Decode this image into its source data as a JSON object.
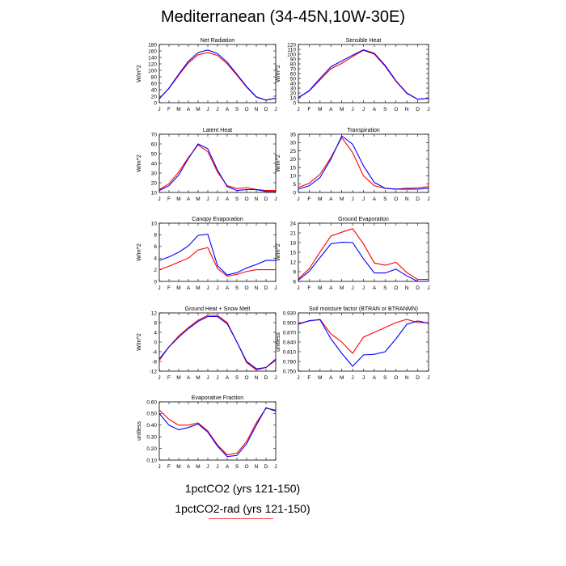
{
  "title": "Mediterranean (34-45N,10W-30E)",
  "legend": {
    "entries": [
      {
        "label": "1pctCO2 (yrs 121-150)",
        "color": "#0000ff"
      },
      {
        "label": "1pctCO2-rad (yrs 121-150)",
        "color": "#ff0000"
      }
    ]
  },
  "colors": {
    "series_1": "#0000ff",
    "series_2": "#ff0000"
  },
  "chart_data": [
    {
      "type": "line",
      "title": "Net Radiation",
      "ylabel": "W/m^2",
      "categories": [
        "J",
        "F",
        "M",
        "A",
        "M",
        "J",
        "J",
        "A",
        "S",
        "O",
        "N",
        "D",
        "J"
      ],
      "ylim": [
        0,
        180
      ],
      "yticks": [
        "0",
        "20",
        "40",
        "60",
        "80",
        "100",
        "120",
        "140",
        "160",
        "180"
      ],
      "series": [
        {
          "values": [
            12,
            45,
            88,
            128,
            155,
            163,
            152,
            125,
            88,
            50,
            18,
            8,
            14
          ]
        },
        {
          "values": [
            13,
            44,
            85,
            123,
            148,
            155,
            146,
            120,
            85,
            48,
            17,
            8,
            14
          ]
        }
      ]
    },
    {
      "type": "line",
      "title": "Sensible Heat",
      "ylabel": "W/m^2",
      "categories": [
        "J",
        "F",
        "M",
        "A",
        "M",
        "J",
        "J",
        "A",
        "S",
        "O",
        "N",
        "D",
        "J"
      ],
      "ylim": [
        0,
        120
      ],
      "yticks": [
        "0",
        "10",
        "20",
        "30",
        "40",
        "50",
        "60",
        "70",
        "80",
        "90",
        "100",
        "110",
        "120"
      ],
      "series": [
        {
          "values": [
            10,
            25,
            50,
            74,
            86,
            98,
            109,
            102,
            77,
            45,
            20,
            7,
            9
          ]
        },
        {
          "values": [
            11,
            24,
            47,
            70,
            81,
            95,
            108,
            100,
            75,
            44,
            19,
            7,
            9
          ]
        }
      ]
    },
    {
      "type": "line",
      "title": "Latent Heat",
      "ylabel": "W/m^2",
      "categories": [
        "J",
        "F",
        "M",
        "A",
        "M",
        "J",
        "J",
        "A",
        "S",
        "O",
        "N",
        "D",
        "J"
      ],
      "ylim": [
        10,
        70
      ],
      "yticks": [
        "10",
        "20",
        "30",
        "40",
        "50",
        "60",
        "70"
      ],
      "series": [
        {
          "values": [
            12,
            17,
            28,
            45,
            60,
            55,
            33,
            16,
            12,
            13,
            13,
            11,
            11
          ]
        },
        {
          "values": [
            13,
            19,
            31,
            46,
            59,
            52,
            31,
            17,
            14,
            15,
            13,
            12,
            12
          ]
        }
      ]
    },
    {
      "type": "line",
      "title": "Transpiration",
      "ylabel": "W/m^2",
      "categories": [
        "J",
        "F",
        "M",
        "A",
        "M",
        "J",
        "J",
        "A",
        "S",
        "O",
        "N",
        "D",
        "J"
      ],
      "ylim": [
        0,
        35
      ],
      "yticks": [
        "0",
        "5",
        "10",
        "15",
        "20",
        "25",
        "30",
        "35"
      ],
      "series": [
        {
          "values": [
            2,
            4,
            9,
            20,
            34,
            29,
            16,
            6,
            2.5,
            2,
            2,
            2,
            2.5
          ]
        },
        {
          "values": [
            3,
            5.5,
            11,
            21,
            33,
            24,
            10,
            4,
            2.5,
            2,
            2.5,
            2.8,
            3.5
          ]
        }
      ]
    },
    {
      "type": "line",
      "title": "Canopy Evaporation",
      "ylabel": "W/m^2",
      "categories": [
        "J",
        "F",
        "M",
        "A",
        "M",
        "J",
        "J",
        "A",
        "S",
        "O",
        "N",
        "D",
        "J"
      ],
      "ylim": [
        0,
        10
      ],
      "yticks": [
        "0",
        "2",
        "4",
        "6",
        "8",
        "10"
      ],
      "series": [
        {
          "values": [
            3.6,
            4.2,
            5,
            6.1,
            7.9,
            8.1,
            2.7,
            1.1,
            1.5,
            2.3,
            2.9,
            3.6,
            3.6
          ]
        },
        {
          "values": [
            2,
            2.6,
            3.3,
            4,
            5.4,
            5.8,
            2.2,
            0.9,
            1.2,
            1.7,
            2,
            2,
            2
          ]
        }
      ]
    },
    {
      "type": "line",
      "title": "Ground Evaporation",
      "ylabel": "W/m^2",
      "categories": [
        "J",
        "F",
        "M",
        "A",
        "M",
        "J",
        "J",
        "A",
        "S",
        "O",
        "N",
        "D",
        "J"
      ],
      "ylim": [
        6,
        24
      ],
      "yticks": [
        "6",
        "9",
        "12",
        "15",
        "18",
        "21",
        "24"
      ],
      "series": [
        {
          "values": [
            6.4,
            9.1,
            13.4,
            17.6,
            18.1,
            18,
            13,
            8.6,
            8.6,
            9.8,
            7.7,
            6,
            6
          ]
        },
        {
          "values": [
            6.8,
            9.9,
            15.1,
            20,
            21.2,
            22.3,
            17.6,
            11.7,
            11,
            11.9,
            8.7,
            6.6,
            6.6
          ]
        }
      ]
    },
    {
      "type": "line",
      "title": "Ground Heat + Snow Melt",
      "ylabel": "W/m^2",
      "categories": [
        "J",
        "F",
        "M",
        "A",
        "M",
        "J",
        "J",
        "A",
        "S",
        "O",
        "N",
        "D",
        "J"
      ],
      "ylim": [
        -12,
        12
      ],
      "yticks": [
        "-12",
        "-8",
        "-4",
        "0",
        "4",
        "8",
        "12"
      ],
      "series": [
        {
          "values": [
            -7,
            -2,
            2,
            5.5,
            8.5,
            10.5,
            10.5,
            7.5,
            0,
            -8,
            -11,
            -10.5,
            -7
          ]
        },
        {
          "values": [
            -7.5,
            -2,
            2.5,
            6,
            9,
            11,
            11,
            8,
            0,
            -8.5,
            -11.5,
            -10.5,
            -7.5
          ]
        }
      ]
    },
    {
      "type": "line",
      "title": "Soil moisture factor (BTRAN or BTRANMN)",
      "ylabel": "unitless",
      "categories": [
        "J",
        "F",
        "M",
        "A",
        "M",
        "J",
        "J",
        "A",
        "S",
        "O",
        "N",
        "D",
        "J"
      ],
      "ylim": [
        0.75,
        0.93
      ],
      "yticks": [
        "0.750",
        "0.780",
        "0.810",
        "0.840",
        "0.870",
        "0.900",
        "0.930"
      ],
      "series": [
        {
          "values": [
            0.895,
            0.906,
            0.909,
            0.85,
            0.805,
            0.765,
            0.8,
            0.802,
            0.81,
            0.85,
            0.895,
            0.905,
            0.898
          ]
        },
        {
          "values": [
            0.897,
            0.905,
            0.91,
            0.865,
            0.84,
            0.805,
            0.855,
            0.87,
            0.885,
            0.9,
            0.91,
            0.9,
            0.9
          ]
        }
      ]
    },
    {
      "type": "line",
      "title": "Evaporative Fraction",
      "ylabel": "unitless",
      "categories": [
        "J",
        "F",
        "M",
        "A",
        "M",
        "J",
        "J",
        "A",
        "S",
        "O",
        "N",
        "D",
        "J"
      ],
      "ylim": [
        0.1,
        0.6
      ],
      "yticks": [
        "0.10",
        "0.20",
        "0.30",
        "0.40",
        "0.50",
        "0.60"
      ],
      "series": [
        {
          "values": [
            0.5,
            0.4,
            0.36,
            0.38,
            0.41,
            0.34,
            0.22,
            0.13,
            0.14,
            0.24,
            0.4,
            0.55,
            0.52
          ]
        },
        {
          "values": [
            0.53,
            0.45,
            0.4,
            0.4,
            0.42,
            0.35,
            0.23,
            0.145,
            0.16,
            0.26,
            0.42,
            0.545,
            0.53
          ]
        }
      ]
    }
  ]
}
